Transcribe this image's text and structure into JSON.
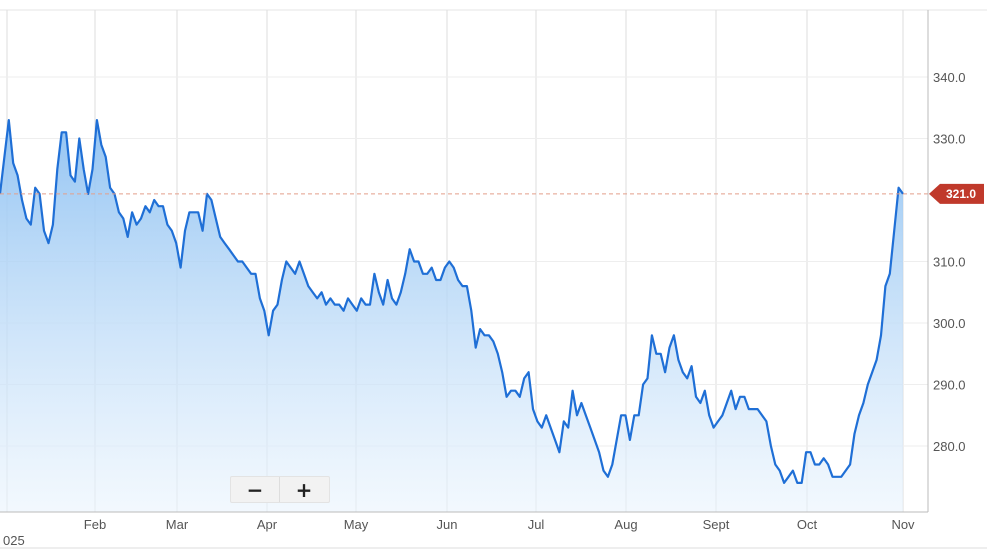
{
  "chart_data": {
    "type": "area",
    "x_axis_labels": [
      "Feb",
      "Mar",
      "Apr",
      "May",
      "Jun",
      "Jul",
      "Aug",
      "Sept",
      "Oct",
      "Nov"
    ],
    "x_axis_year_fragment": "025",
    "y_axis_labels": [
      "340.0",
      "330.0",
      "310.0",
      "300.0",
      "290.0",
      "280.0"
    ],
    "y_axis_ticks": [
      340,
      330,
      310,
      300,
      290,
      280
    ],
    "ylim": [
      272,
      350
    ],
    "grid": true,
    "last_value": 321.0,
    "last_value_label": "321.0",
    "series": [
      {
        "values": [
          321,
          327,
          333,
          326,
          324,
          320,
          317,
          316,
          322,
          321,
          315,
          313,
          316,
          325,
          331,
          331,
          324,
          323,
          330,
          325,
          321,
          325,
          333,
          329,
          327,
          322,
          321,
          318,
          317,
          314,
          318,
          316,
          317,
          319,
          318,
          320,
          319,
          319,
          316,
          315,
          313,
          309,
          315,
          318,
          318,
          318,
          315,
          321,
          320,
          317,
          314,
          313,
          312,
          311,
          310,
          310,
          309,
          308,
          308,
          304,
          302,
          298,
          302,
          303,
          307,
          310,
          309,
          308,
          310,
          308,
          306,
          305,
          304,
          305,
          303,
          304,
          303,
          303,
          302,
          304,
          303,
          302,
          304,
          303,
          303,
          308,
          305,
          303,
          307,
          304,
          303,
          305,
          308,
          312,
          310,
          310,
          308,
          308,
          309,
          307,
          307,
          309,
          310,
          309,
          307,
          306,
          306,
          302,
          296,
          299,
          298,
          298,
          297,
          295,
          292,
          288,
          289,
          289,
          288,
          291,
          292,
          286,
          284,
          283,
          285,
          283,
          281,
          279,
          284,
          283,
          289,
          285,
          287,
          285,
          283,
          281,
          279,
          276,
          275,
          277,
          281,
          285,
          285,
          281,
          285,
          285,
          290,
          291,
          298,
          295,
          295,
          292,
          296,
          298,
          294,
          292,
          291,
          293,
          288,
          287,
          289,
          285,
          283,
          284,
          285,
          287,
          289,
          286,
          288,
          288,
          286,
          286,
          286,
          285,
          284,
          280,
          277,
          276,
          274,
          275,
          276,
          274,
          274,
          279,
          279,
          277,
          277,
          278,
          277,
          275,
          275,
          275,
          276,
          277,
          282,
          285,
          287,
          290,
          292,
          294,
          298,
          306,
          308,
          315,
          322,
          321
        ]
      }
    ]
  },
  "zoom_controls": {
    "zoom_out_label": "−",
    "zoom_in_label": "+"
  }
}
